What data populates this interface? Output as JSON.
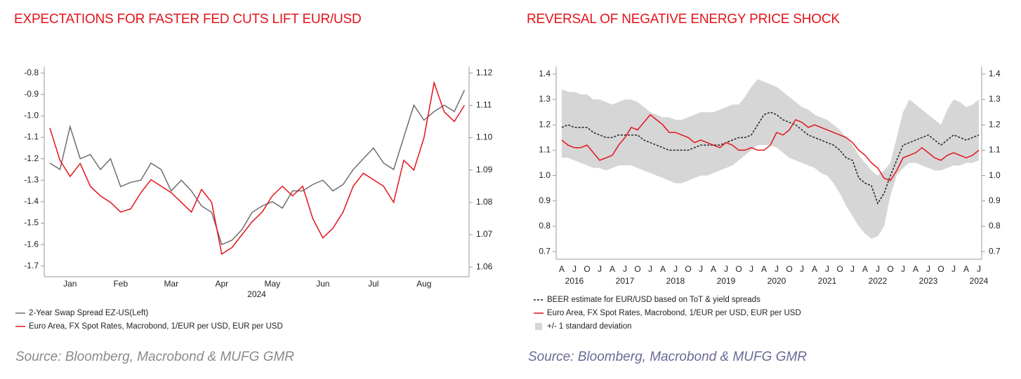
{
  "chart_data": [
    {
      "type": "line",
      "title": "EXPECTATIONS FOR FASTER FED CUTS LIFT EUR/USD",
      "source": "Source: Bloomberg, Macrobond & MUFG GMR",
      "xlabel": "2024",
      "categories": [
        null,
        null,
        "Jan",
        null,
        null,
        null,
        null,
        "Feb",
        null,
        null,
        null,
        null,
        "Mar",
        null,
        null,
        null,
        null,
        "Apr",
        null,
        null,
        null,
        null,
        "May",
        null,
        null,
        null,
        null,
        "Jun",
        null,
        null,
        null,
        null,
        "Jul",
        null,
        null,
        null,
        null,
        "Aug",
        null,
        null,
        null,
        null
      ],
      "series": [
        {
          "name": "2-Year Swap Spread EZ-US(Left)",
          "color": "#6e6e6e",
          "values": [
            -1.22,
            -1.25,
            -1.05,
            -1.2,
            -1.18,
            -1.25,
            -1.2,
            -1.33,
            -1.31,
            -1.3,
            -1.22,
            -1.25,
            -1.35,
            -1.3,
            -1.35,
            -1.42,
            -1.45,
            -1.6,
            -1.58,
            -1.53,
            -1.45,
            -1.42,
            -1.4,
            -1.43,
            -1.35,
            -1.35,
            -1.32,
            -1.3,
            -1.35,
            -1.32,
            -1.25,
            -1.2,
            -1.15,
            -1.22,
            -1.25,
            -1.1,
            -0.95,
            -1.02,
            -0.98,
            -0.95,
            -0.98,
            -0.88
          ]
        },
        {
          "name": "Euro Area, FX Spot Rates, Macrobond, 1/EUR per USD, EUR per USD",
          "color": "#e4131b",
          "axis": "y2",
          "values": [
            1.103,
            1.093,
            1.088,
            1.092,
            1.085,
            1.082,
            1.08,
            1.077,
            1.078,
            1.083,
            1.087,
            1.085,
            1.083,
            1.08,
            1.077,
            1.084,
            1.08,
            1.064,
            1.066,
            1.07,
            1.074,
            1.077,
            1.082,
            1.085,
            1.082,
            1.085,
            1.075,
            1.069,
            1.072,
            1.077,
            1.085,
            1.089,
            1.087,
            1.085,
            1.08,
            1.093,
            1.09,
            1.1,
            1.117,
            1.108,
            1.105,
            1.11
          ]
        }
      ],
      "ylim": [
        -1.75,
        -0.77
      ],
      "yticks": [
        -1.7,
        -1.6,
        -1.5,
        -1.4,
        -1.3,
        -1.2,
        -1.1,
        {
          "value": -1,
          "label": "-1.0"
        },
        -0.9,
        -0.8
      ],
      "y2lim": [
        1.057,
        1.122
      ],
      "y2ticks": [
        1.06,
        1.07,
        1.08,
        1.09,
        {
          "value": 1.1,
          "label": "1.10"
        },
        1.11,
        1.12
      ]
    },
    {
      "type": "line",
      "title": "REVERSAL OF NEGATIVE ENERGY PRICE SHOCK",
      "source": "Source: Bloomberg, Macrobond & MUFG GMR",
      "year_labels": [
        "2016",
        "2017",
        "2018",
        "2019",
        "2020",
        "2021",
        "2022",
        "2023",
        "2024"
      ],
      "categories": [
        "A",
        null,
        "J",
        null,
        "O",
        null,
        "J",
        null,
        "A",
        null,
        "J",
        null,
        "O",
        null,
        "J",
        null,
        "A",
        null,
        "J",
        null,
        "O",
        null,
        "J",
        null,
        "A",
        null,
        "J",
        null,
        "O",
        null,
        "J",
        null,
        "A",
        null,
        "J",
        null,
        "O",
        null,
        "J",
        null,
        "A",
        null,
        "J",
        null,
        "O",
        null,
        "J",
        null,
        "A",
        null,
        "J",
        null,
        "O",
        null,
        "J",
        null,
        "A",
        null,
        "J",
        null,
        "O",
        null,
        "J",
        null,
        "A",
        null,
        "J"
      ],
      "series": [
        {
          "name": "+/- 1 standard deviation",
          "color": "#d6d6d6",
          "upper": [
            1.34,
            1.33,
            1.33,
            1.32,
            1.32,
            1.3,
            1.3,
            1.29,
            1.28,
            1.29,
            1.3,
            1.3,
            1.29,
            1.27,
            1.25,
            1.24,
            1.23,
            1.23,
            1.22,
            1.22,
            1.23,
            1.24,
            1.25,
            1.25,
            1.25,
            1.26,
            1.27,
            1.28,
            1.28,
            1.31,
            1.35,
            1.38,
            1.37,
            1.36,
            1.35,
            1.33,
            1.31,
            1.29,
            1.27,
            1.26,
            1.24,
            1.23,
            1.22,
            1.2,
            1.18,
            1.15,
            1.12,
            1.08,
            1.05,
            1.02,
            1.0,
            1.02,
            1.05,
            1.15,
            1.25,
            1.3,
            1.28,
            1.26,
            1.24,
            1.22,
            1.2,
            1.26,
            1.3,
            1.29,
            1.27,
            1.28,
            1.3
          ],
          "lower": [
            1.07,
            1.07,
            1.06,
            1.05,
            1.04,
            1.03,
            1.03,
            1.02,
            1.03,
            1.04,
            1.04,
            1.04,
            1.03,
            1.02,
            1.01,
            1.0,
            0.99,
            0.98,
            0.97,
            0.97,
            0.98,
            0.99,
            1.0,
            1.0,
            1.01,
            1.02,
            1.03,
            1.04,
            1.06,
            1.08,
            1.1,
            1.12,
            1.12,
            1.12,
            1.11,
            1.09,
            1.07,
            1.06,
            1.05,
            1.04,
            1.03,
            1.01,
            1.0,
            0.97,
            0.93,
            0.88,
            0.84,
            0.8,
            0.77,
            0.75,
            0.76,
            0.8,
            0.92,
            1.0,
            1.03,
            1.05,
            1.05,
            1.04,
            1.03,
            1.02,
            1.02,
            1.03,
            1.04,
            1.04,
            1.05,
            1.05,
            1.06
          ]
        },
        {
          "name": "BEER estimate for EUR/USD based on ToT & yield spreads",
          "color": "#222222",
          "dash": true,
          "values": [
            1.19,
            1.2,
            1.19,
            1.19,
            1.19,
            1.17,
            1.16,
            1.15,
            1.15,
            1.16,
            1.16,
            1.16,
            1.16,
            1.14,
            1.13,
            1.12,
            1.11,
            1.1,
            1.1,
            1.1,
            1.1,
            1.11,
            1.12,
            1.12,
            1.12,
            1.12,
            1.13,
            1.14,
            1.15,
            1.15,
            1.16,
            1.2,
            1.24,
            1.25,
            1.24,
            1.22,
            1.21,
            1.2,
            1.18,
            1.16,
            1.15,
            1.14,
            1.13,
            1.12,
            1.1,
            1.07,
            1.06,
            0.99,
            0.97,
            0.96,
            0.89,
            0.93,
            1.0,
            1.06,
            1.12,
            1.13,
            1.14,
            1.15,
            1.16,
            1.14,
            1.12,
            1.14,
            1.16,
            1.15,
            1.14,
            1.15,
            1.16
          ]
        },
        {
          "name": "Euro Area, FX Spot Rates, Macrobond, 1/EUR per USD, EUR per USD",
          "color": "#e4131b",
          "values": [
            1.14,
            1.12,
            1.11,
            1.11,
            1.12,
            1.09,
            1.06,
            1.07,
            1.08,
            1.12,
            1.15,
            1.19,
            1.18,
            1.21,
            1.24,
            1.22,
            1.2,
            1.17,
            1.17,
            1.16,
            1.15,
            1.13,
            1.14,
            1.13,
            1.12,
            1.11,
            1.13,
            1.12,
            1.1,
            1.1,
            1.11,
            1.1,
            1.1,
            1.12,
            1.17,
            1.16,
            1.18,
            1.22,
            1.21,
            1.19,
            1.2,
            1.19,
            1.18,
            1.17,
            1.16,
            1.15,
            1.13,
            1.1,
            1.08,
            1.05,
            1.03,
            0.99,
            0.98,
            1.02,
            1.07,
            1.08,
            1.09,
            1.11,
            1.09,
            1.07,
            1.06,
            1.08,
            1.09,
            1.08,
            1.07,
            1.08,
            1.1
          ]
        }
      ],
      "ylim": [
        0.67,
        1.43
      ],
      "yticks": [
        0.7,
        0.8,
        0.9,
        {
          "value": 1,
          "label": "1.0"
        },
        1.1,
        1.2,
        1.3,
        1.4
      ],
      "y2lim": [
        0.67,
        1.43
      ],
      "y2ticks": [
        0.7,
        0.8,
        0.9,
        {
          "value": 1,
          "label": "1.0"
        },
        1.1,
        1.2,
        1.3,
        1.4
      ]
    }
  ]
}
